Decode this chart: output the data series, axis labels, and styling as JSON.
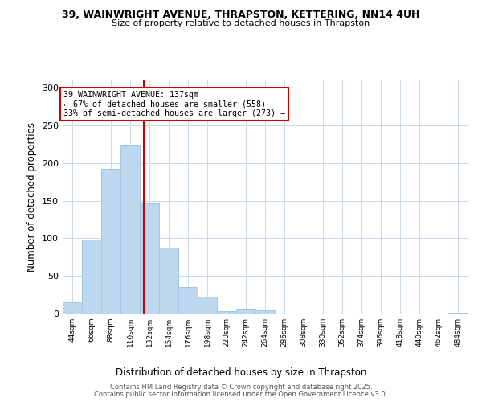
{
  "title_line1": "39, WAINWRIGHT AVENUE, THRAPSTON, KETTERING, NN14 4UH",
  "title_line2": "Size of property relative to detached houses in Thrapston",
  "xlabel": "Distribution of detached houses by size in Thrapston",
  "ylabel": "Number of detached properties",
  "bin_labels": [
    "44sqm",
    "66sqm",
    "88sqm",
    "110sqm",
    "132sqm",
    "154sqm",
    "176sqm",
    "198sqm",
    "220sqm",
    "242sqm",
    "264sqm",
    "286sqm",
    "308sqm",
    "330sqm",
    "352sqm",
    "374sqm",
    "396sqm",
    "418sqm",
    "440sqm",
    "462sqm",
    "484sqm"
  ],
  "bin_edges": [
    44,
    66,
    88,
    110,
    132,
    154,
    176,
    198,
    220,
    242,
    264,
    286,
    308,
    330,
    352,
    374,
    396,
    418,
    440,
    462,
    484,
    506
  ],
  "bar_heights": [
    15,
    98,
    192,
    224,
    146,
    88,
    35,
    22,
    3,
    6,
    4,
    0,
    0,
    0,
    0,
    0,
    0,
    0,
    0,
    0,
    1
  ],
  "bar_color": "#bdd7ee",
  "bar_edge_color": "#9ec8e0",
  "vline_x": 137,
  "vline_color": "#cc0000",
  "annotation_text": "39 WAINWRIGHT AVENUE: 137sqm\n← 67% of detached houses are smaller (558)\n33% of semi-detached houses are larger (273) →",
  "annotation_box_color": "#ffffff",
  "annotation_box_edge": "#cc0000",
  "ylim": [
    0,
    310
  ],
  "yticks": [
    0,
    50,
    100,
    150,
    200,
    250,
    300
  ],
  "footer_line1": "Contains HM Land Registry data © Crown copyright and database right 2025.",
  "footer_line2": "Contains public sector information licensed under the Open Government Licence v3.0.",
  "bg_color": "#ffffff",
  "grid_color": "#c8d8e8"
}
